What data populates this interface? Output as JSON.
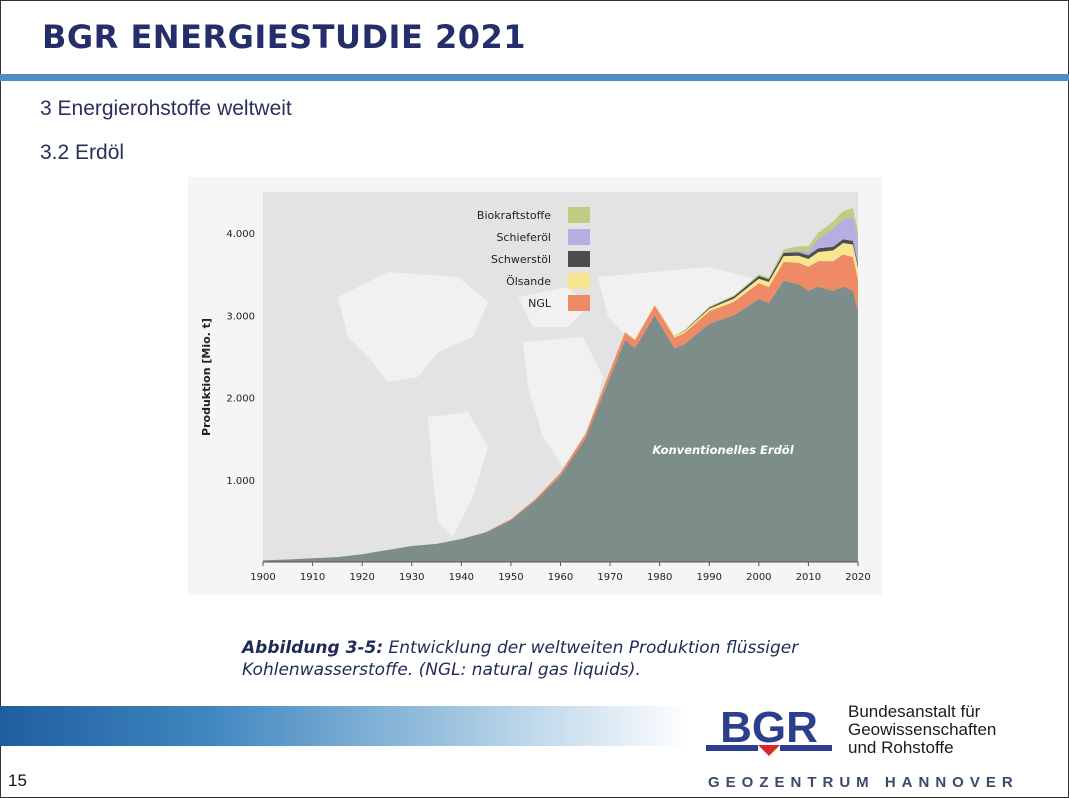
{
  "slide": {
    "title": "BGR ENERGIESTUDIE 2021",
    "heading1": "3 Energierohstoffe weltweit",
    "heading2": "3.2 Erdöl",
    "caption_bold": "Abbildung 3-5:",
    "caption_text": " Entwicklung der weltweiten Produktion flüssiger Kohlenwasserstoffe. (NGL: natural gas liquids).",
    "page_number": "15"
  },
  "footer": {
    "logo_text": "BGR",
    "org_line1": "Bundesanstalt für",
    "org_line2": "Geowissenschaften",
    "org_line3": "und Rohstoffe",
    "geo_first": "GEOZENTRUM",
    "geo_second": "HANNOVER",
    "colors": {
      "brand_blue": "#2c3f8f",
      "brand_red": "#d42a2a",
      "bar_blue": "#4f8dc6"
    }
  },
  "chart_data": {
    "type": "area",
    "stacked": true,
    "title": "",
    "xlabel": "",
    "ylabel": "Produktion [Mio. t]",
    "xlim": [
      1900,
      2020
    ],
    "ylim": [
      0,
      4500
    ],
    "x_ticks": [
      "1900",
      "1910",
      "1920",
      "1930",
      "1940",
      "1950",
      "1960",
      "1970",
      "1980",
      "1990",
      "2000",
      "2010",
      "2020"
    ],
    "y_ticks": [
      {
        "v": 1000,
        "label": "1.000"
      },
      {
        "v": 2000,
        "label": "2.000"
      },
      {
        "v": 3000,
        "label": "3.000"
      },
      {
        "v": 4000,
        "label": "4.000"
      }
    ],
    "annotation": "Konventionelles Erdöl",
    "legend_placement": "top-center",
    "x": [
      1900,
      1905,
      1910,
      1915,
      1920,
      1925,
      1930,
      1935,
      1940,
      1945,
      1950,
      1955,
      1960,
      1965,
      1970,
      1973,
      1975,
      1979,
      1980,
      1983,
      1985,
      1990,
      1995,
      2000,
      2002,
      2005,
      2008,
      2010,
      2012,
      2015,
      2017,
      2019,
      2020
    ],
    "series": [
      {
        "name": "Konventionelles Erdöl",
        "color": "#7d8e8a",
        "values": [
          20,
          30,
          45,
          60,
          95,
          145,
          195,
          220,
          280,
          360,
          510,
          750,
          1050,
          1500,
          2250,
          2700,
          2600,
          3000,
          2900,
          2600,
          2650,
          2900,
          3000,
          3200,
          3150,
          3420,
          3380,
          3300,
          3350,
          3300,
          3350,
          3300,
          3050
        ]
      },
      {
        "name": "NGL",
        "color": "#ee8a66",
        "values": [
          0,
          0,
          0,
          0,
          0,
          0,
          0,
          0,
          0,
          5,
          10,
          20,
          35,
          55,
          80,
          95,
          100,
          120,
          125,
          130,
          135,
          150,
          165,
          190,
          195,
          230,
          260,
          290,
          310,
          360,
          390,
          410,
          380
        ]
      },
      {
        "name": "Ölsande",
        "color": "#f7e58f",
        "values": [
          0,
          0,
          0,
          0,
          0,
          0,
          0,
          0,
          0,
          0,
          0,
          0,
          0,
          2,
          5,
          8,
          10,
          15,
          17,
          20,
          22,
          30,
          40,
          55,
          60,
          70,
          85,
          95,
          110,
          130,
          140,
          150,
          150
        ]
      },
      {
        "name": "Schwerstöl",
        "color": "#4d4d4d",
        "values": [
          0,
          0,
          0,
          0,
          0,
          0,
          0,
          0,
          0,
          0,
          0,
          0,
          0,
          0,
          0,
          0,
          0,
          0,
          0,
          0,
          5,
          15,
          25,
          35,
          35,
          40,
          40,
          45,
          45,
          45,
          45,
          45,
          40
        ]
      },
      {
        "name": "Schieferöl",
        "color": "#b5aee0",
        "values": [
          0,
          0,
          0,
          0,
          0,
          0,
          0,
          0,
          0,
          0,
          0,
          0,
          0,
          0,
          0,
          0,
          0,
          0,
          0,
          0,
          0,
          0,
          0,
          0,
          0,
          5,
          20,
          40,
          110,
          220,
          240,
          290,
          290
        ]
      },
      {
        "name": "Biokraftstoffe",
        "color": "#c2cb82",
        "values": [
          0,
          0,
          0,
          0,
          0,
          0,
          0,
          0,
          0,
          0,
          0,
          0,
          0,
          0,
          0,
          0,
          0,
          0,
          3,
          5,
          8,
          12,
          14,
          18,
          20,
          35,
          55,
          70,
          80,
          90,
          100,
          110,
          105
        ]
      }
    ],
    "legend_order": [
      "Biokraftstoffe",
      "Schieferöl",
      "Schwerstöl",
      "Ölsande",
      "NGL"
    ]
  }
}
